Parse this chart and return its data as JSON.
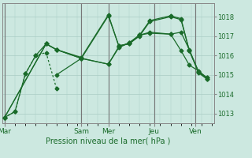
{
  "xlabel": "Pression niveau de la mer( hPa )",
  "background_color": "#cce8e0",
  "grid_color": "#aaccc4",
  "line_color": "#1a6b2a",
  "dark_line_color": "#555555",
  "ylim": [
    1012.5,
    1018.7
  ],
  "yticks": [
    1013,
    1014,
    1015,
    1016,
    1017,
    1018
  ],
  "day_labels": [
    "Mar",
    "Sam",
    "Mer",
    "Jeu",
    "Ven"
  ],
  "day_positions": [
    0.0,
    0.37,
    0.5,
    0.72,
    0.92
  ],
  "series": [
    {
      "x": [
        0.0,
        0.05,
        0.1,
        0.15,
        0.2,
        0.25
      ],
      "y": [
        1012.8,
        1013.1,
        1015.05,
        1016.0,
        1016.15,
        1014.3
      ],
      "style": "dotted"
    },
    {
      "x": [
        0.0,
        0.05,
        0.1,
        0.15,
        0.2,
        0.25,
        0.37,
        0.5,
        0.55,
        0.6,
        0.65,
        0.7,
        0.8,
        0.85,
        0.89,
        0.935,
        0.975
      ],
      "y": [
        1012.8,
        1013.1,
        1015.05,
        1016.0,
        1016.6,
        1016.3,
        1015.85,
        1015.55,
        1016.4,
        1016.65,
        1017.05,
        1017.15,
        1017.1,
        1017.2,
        1016.3,
        1015.15,
        1014.85
      ],
      "style": "solid"
    },
    {
      "x": [
        0.0,
        0.2,
        0.25,
        0.37,
        0.5,
        0.55,
        0.6,
        0.65,
        0.7,
        0.8,
        0.85,
        0.89,
        0.935,
        0.975
      ],
      "y": [
        1012.8,
        1016.6,
        1016.3,
        1015.9,
        1018.1,
        1016.5,
        1016.6,
        1017.05,
        1017.8,
        1018.05,
        1017.9,
        1016.25,
        1015.15,
        1014.8
      ],
      "style": "solid"
    },
    {
      "x": [
        0.0,
        0.2,
        0.25,
        0.37,
        0.5,
        0.55,
        0.6,
        0.65,
        0.7,
        0.8,
        0.85,
        0.89,
        0.935,
        0.975
      ],
      "y": [
        1012.8,
        1016.6,
        1016.3,
        1015.85,
        1018.05,
        1016.5,
        1016.6,
        1017.0,
        1017.75,
        1018.0,
        1017.85,
        1016.25,
        1015.1,
        1014.78
      ],
      "style": "solid"
    },
    {
      "x": [
        0.25,
        0.37,
        0.5,
        0.55,
        0.6,
        0.65,
        0.7,
        0.8,
        0.85,
        0.89,
        0.935,
        0.975
      ],
      "y": [
        1015.0,
        1015.85,
        1015.55,
        1016.45,
        1016.65,
        1017.05,
        1017.2,
        1017.1,
        1016.25,
        1015.5,
        1015.2,
        1014.85
      ],
      "style": "solid"
    }
  ]
}
